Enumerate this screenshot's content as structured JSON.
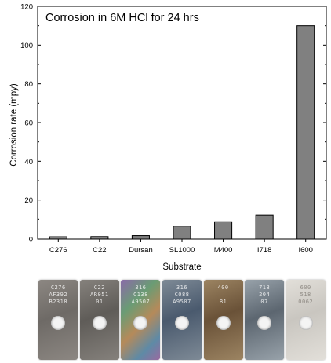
{
  "chart_data": {
    "type": "bar",
    "title": "Corrosion in 6M HCl for 24 hrs",
    "xlabel": "Substrate",
    "ylabel": "Corrosion rate (mpy)",
    "categories": [
      "C276",
      "C22",
      "Dursan",
      "SL1000",
      "M400",
      "I718",
      "I600"
    ],
    "values": [
      1.2,
      1.3,
      1.8,
      6.6,
      8.8,
      12.1,
      110
    ],
    "ylim": [
      0,
      120
    ],
    "yticks": [
      0,
      20,
      40,
      60,
      80,
      100,
      120
    ],
    "bar_color": "#808080",
    "grid": false,
    "legend": "none"
  },
  "photos": [
    {
      "name": "C276",
      "stamp": "C276\nAF392\nB2318",
      "color_a": "#6e6a66",
      "color_b": "#8c8782"
    },
    {
      "name": "C22",
      "stamp": "C22\nAR051\n01",
      "color_a": "#5f5c58",
      "color_b": "#85817c"
    },
    {
      "name": "Dursan",
      "stamp": "316\nC138\nA9507",
      "color_a": "#6b5a8f",
      "color_b": "#5f9a6e"
    },
    {
      "name": "SL1000",
      "stamp": "316\nC088\nA9507",
      "color_a": "#4a5a6e",
      "color_b": "#7e8a96"
    },
    {
      "name": "M400",
      "stamp": "400\n\nB1",
      "color_a": "#6a5238",
      "color_b": "#9c8462"
    },
    {
      "name": "I718",
      "stamp": "718\n204\n07",
      "color_a": "#5c6670",
      "color_b": "#98a2aa"
    },
    {
      "name": "I600",
      "stamp": "600\n518\n0062",
      "color_a": "#c9c6c0",
      "color_b": "#e2dfd9"
    }
  ]
}
